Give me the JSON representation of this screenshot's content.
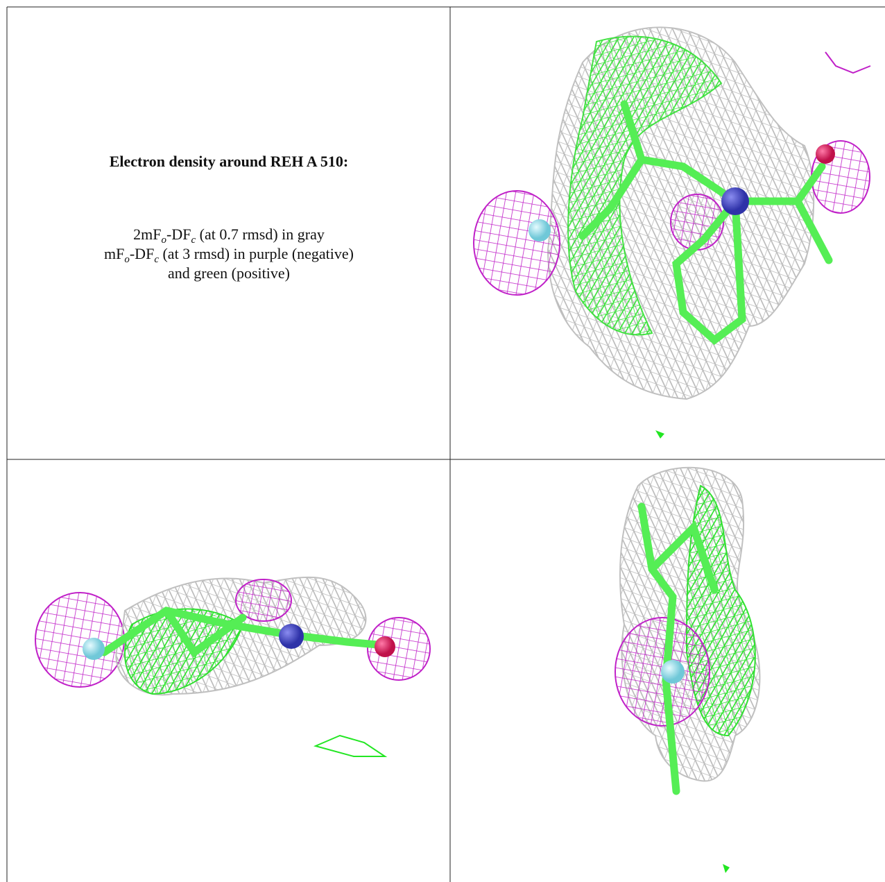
{
  "caption": {
    "title": "Electron density around REH A 510:",
    "lines": [
      [
        "2mF",
        "o",
        "-DF",
        "c",
        " (at 0.7 rmsd) in gray"
      ],
      [
        "mF",
        "o",
        "-DF",
        "c",
        " (at 3 rmsd) in purple (negative)"
      ],
      [
        "and green (positive)"
      ]
    ]
  }
}
